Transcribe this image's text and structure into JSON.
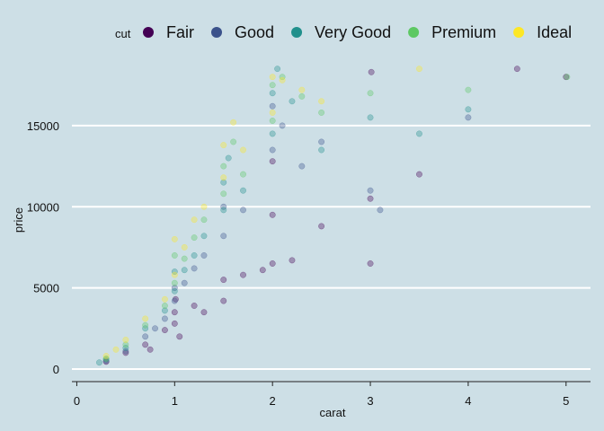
{
  "chart_data": {
    "type": "scatter",
    "title": "",
    "xlabel": "carat",
    "ylabel": "price",
    "xlim": [
      -0.05,
      5.25
    ],
    "ylim": [
      -500,
      19200
    ],
    "x_ticks": [
      0,
      1,
      2,
      3,
      4,
      5
    ],
    "y_ticks": [
      0,
      5000,
      10000,
      15000
    ],
    "grid": "horizontal major gridlines",
    "legend_position": "top",
    "legend_title": "cut",
    "series": [
      {
        "name": "Fair",
        "color": "#440154",
        "points": [
          [
            0.3,
            450
          ],
          [
            0.5,
            1000
          ],
          [
            0.7,
            1500
          ],
          [
            0.75,
            1200
          ],
          [
            0.9,
            2400
          ],
          [
            1.0,
            2800
          ],
          [
            1.0,
            3500
          ],
          [
            1.01,
            4300
          ],
          [
            1.05,
            2000
          ],
          [
            1.2,
            3900
          ],
          [
            1.3,
            3500
          ],
          [
            1.5,
            4200
          ],
          [
            1.5,
            5500
          ],
          [
            1.7,
            5800
          ],
          [
            1.9,
            6100
          ],
          [
            2.0,
            6500
          ],
          [
            2.0,
            9500
          ],
          [
            2.0,
            12800
          ],
          [
            2.2,
            6700
          ],
          [
            2.5,
            8800
          ],
          [
            3.0,
            10500
          ],
          [
            3.01,
            18300
          ],
          [
            3.0,
            6500
          ],
          [
            3.5,
            12000
          ],
          [
            4.5,
            18500
          ],
          [
            5.0,
            18000
          ]
        ]
      },
      {
        "name": "Good",
        "color": "#3b528b",
        "points": [
          [
            0.3,
            500
          ],
          [
            0.5,
            1100
          ],
          [
            0.7,
            2000
          ],
          [
            0.8,
            2500
          ],
          [
            0.9,
            3100
          ],
          [
            1.0,
            4200
          ],
          [
            1.0,
            5000
          ],
          [
            1.1,
            5300
          ],
          [
            1.2,
            6200
          ],
          [
            1.3,
            7000
          ],
          [
            1.5,
            8200
          ],
          [
            1.5,
            10000
          ],
          [
            1.7,
            9800
          ],
          [
            2.0,
            13500
          ],
          [
            2.0,
            16200
          ],
          [
            2.1,
            15000
          ],
          [
            2.3,
            12500
          ],
          [
            2.5,
            14000
          ],
          [
            3.0,
            11000
          ],
          [
            3.1,
            9800
          ],
          [
            4.0,
            15500
          ]
        ]
      },
      {
        "name": "Very Good",
        "color": "#21908c",
        "points": [
          [
            0.23,
            400
          ],
          [
            0.3,
            600
          ],
          [
            0.5,
            1300
          ],
          [
            0.7,
            2500
          ],
          [
            0.9,
            3600
          ],
          [
            1.0,
            4800
          ],
          [
            1.0,
            6000
          ],
          [
            1.1,
            6100
          ],
          [
            1.2,
            7000
          ],
          [
            1.3,
            8200
          ],
          [
            1.5,
            9800
          ],
          [
            1.5,
            11500
          ],
          [
            1.55,
            13000
          ],
          [
            1.7,
            11000
          ],
          [
            2.0,
            14500
          ],
          [
            2.0,
            17000
          ],
          [
            2.05,
            18500
          ],
          [
            2.2,
            16500
          ],
          [
            2.5,
            13500
          ],
          [
            3.0,
            15500
          ],
          [
            3.5,
            14500
          ],
          [
            4.0,
            16000
          ]
        ]
      },
      {
        "name": "Premium",
        "color": "#5dc863",
        "points": [
          [
            0.3,
            650
          ],
          [
            0.5,
            1500
          ],
          [
            0.7,
            2700
          ],
          [
            0.9,
            3900
          ],
          [
            1.0,
            5300
          ],
          [
            1.0,
            7000
          ],
          [
            1.1,
            6800
          ],
          [
            1.2,
            8100
          ],
          [
            1.3,
            9200
          ],
          [
            1.5,
            10800
          ],
          [
            1.5,
            12500
          ],
          [
            1.6,
            14000
          ],
          [
            1.7,
            12000
          ],
          [
            2.0,
            15300
          ],
          [
            2.0,
            17500
          ],
          [
            2.1,
            18000
          ],
          [
            2.3,
            16800
          ],
          [
            2.5,
            15800
          ],
          [
            3.0,
            17000
          ],
          [
            4.0,
            17200
          ],
          [
            5.01,
            18000
          ]
        ]
      },
      {
        "name": "Ideal",
        "color": "#fde725",
        "points": [
          [
            0.3,
            800
          ],
          [
            0.4,
            1200
          ],
          [
            0.5,
            1800
          ],
          [
            0.7,
            3100
          ],
          [
            0.9,
            4300
          ],
          [
            1.0,
            5800
          ],
          [
            1.0,
            8000
          ],
          [
            1.1,
            7500
          ],
          [
            1.2,
            9200
          ],
          [
            1.3,
            10000
          ],
          [
            1.5,
            11800
          ],
          [
            1.5,
            13800
          ],
          [
            1.6,
            15200
          ],
          [
            1.7,
            13500
          ],
          [
            2.0,
            15800
          ],
          [
            2.0,
            18000
          ],
          [
            2.1,
            17800
          ],
          [
            2.3,
            17200
          ],
          [
            2.5,
            16500
          ],
          [
            3.5,
            18500
          ]
        ]
      }
    ]
  }
}
